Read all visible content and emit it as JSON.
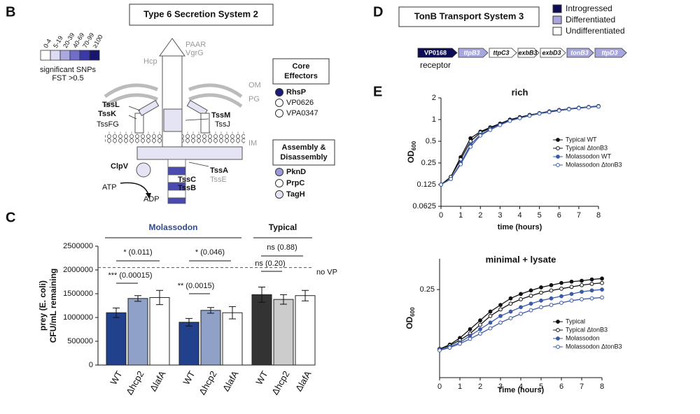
{
  "panel_labels": [
    "B",
    "C",
    "D",
    "E"
  ],
  "diagram_b": {
    "title": "Type 6 Secretion System 2",
    "legend_ticks": [
      "0-4",
      "5-19",
      "20-39",
      "40-69",
      "70-99",
      "≥100"
    ],
    "legend_caption": [
      "significant SNPs",
      "FST >0.5"
    ],
    "labels": {
      "PAAR": "PAAR",
      "VgrG": "VgrG",
      "Hcp": "Hcp",
      "OM": "OM",
      "PG": "PG",
      "IM": "IM",
      "TssL": "TssL",
      "TssK": "TssK",
      "TssFG": "TssFG",
      "TssM": "TssM",
      "TssJ": "TssJ",
      "ClpV": "ClpV",
      "TssA": "TssA",
      "TssE": "TssE",
      "TssC": "TssC",
      "TssB": "TssB",
      "ATP": "ATP",
      "ADP": "ADP"
    },
    "core_effectors": {
      "title": [
        "Core",
        "Effectors"
      ],
      "items": [
        "RhsP",
        "VP0626",
        "VPA0347"
      ]
    },
    "assembly": {
      "title": [
        "Assembly &",
        "Disassembly"
      ],
      "items": [
        "PknD",
        "PrpC",
        "TagH"
      ]
    }
  },
  "diagram_d": {
    "title": "TonB Transport System 3",
    "legend": [
      "Introgressed",
      "Differentiated",
      "Undifferentiated"
    ],
    "genes": [
      "VP0168",
      "ttpB3",
      "ttpC3",
      "exbB3",
      "exbD3",
      "tonB3",
      "ttpD3"
    ],
    "receptor": "receptor"
  },
  "chart_data": [
    {
      "type": "bar",
      "ylabel": [
        "prey (E. coli)",
        "CFU/mL remaining"
      ],
      "categories": [
        "WT",
        "Δhcp2",
        "ΔlafA",
        "WT",
        "Δhcp2",
        "ΔlafA",
        "WT",
        "Δhcp2",
        "ΔlafA"
      ],
      "values": [
        1100000,
        1400000,
        1420000,
        900000,
        1150000,
        1100000,
        1480000,
        1380000,
        1460000
      ],
      "errors": [
        100000,
        60000,
        150000,
        80000,
        60000,
        130000,
        160000,
        100000,
        110000
      ],
      "colors": [
        "#22418c",
        "#8fa1c7",
        "#ffffff",
        "#22418c",
        "#8fa1c7",
        "#ffffff",
        "#333333",
        "#cccccc",
        "#ffffff"
      ],
      "ylim": [
        0,
        2500000
      ],
      "yticks": [
        0,
        500000,
        1000000,
        1500000,
        2000000,
        2500000
      ],
      "groups": [
        "Molassodon",
        "Typical"
      ],
      "reference_line": {
        "value": 2050000,
        "label": "no VP"
      },
      "annotations": [
        "* (0.011)",
        "*** (0.00015)",
        "* (0.046)",
        "** (0.0015)",
        "ns (0.88)",
        "ns (0.20)"
      ]
    },
    {
      "type": "line",
      "title": "rich",
      "xlabel": "time (hours)",
      "ylabel": [
        "OD",
        "600"
      ],
      "ylog": true,
      "x": [
        0,
        0.5,
        1,
        1.5,
        2,
        2.5,
        3,
        3.5,
        4,
        4.5,
        5,
        5.5,
        6,
        6.5,
        7,
        7.5,
        8
      ],
      "xlim": [
        0,
        8
      ],
      "xticks": [
        0,
        1,
        2,
        3,
        4,
        5,
        6,
        7,
        8
      ],
      "ylim": [
        0.0625,
        2
      ],
      "yticks": [
        0.0625,
        0.125,
        0.25,
        0.5,
        1,
        2
      ],
      "legend": "right",
      "series": [
        {
          "name": "Typical WT",
          "color": "#111111",
          "marker": "filled",
          "values": [
            0.125,
            0.16,
            0.3,
            0.55,
            0.68,
            0.78,
            0.88,
            1.0,
            1.08,
            1.16,
            1.23,
            1.3,
            1.36,
            1.41,
            1.46,
            1.5,
            1.54
          ]
        },
        {
          "name": "Typical ΔtonB3",
          "color": "#111111",
          "marker": "open",
          "values": [
            0.125,
            0.16,
            0.28,
            0.5,
            0.66,
            0.76,
            0.86,
            0.98,
            1.06,
            1.14,
            1.22,
            1.28,
            1.34,
            1.4,
            1.45,
            1.49,
            1.53
          ]
        },
        {
          "name": "Molassodon WT",
          "color": "#3b5ba5",
          "marker": "filled",
          "values": [
            0.125,
            0.15,
            0.25,
            0.45,
            0.62,
            0.74,
            0.85,
            0.97,
            1.05,
            1.14,
            1.22,
            1.28,
            1.34,
            1.4,
            1.45,
            1.49,
            1.52
          ]
        },
        {
          "name": "Molassodon ΔtonB3",
          "color": "#3b5ba5",
          "marker": "open",
          "values": [
            0.125,
            0.15,
            0.24,
            0.42,
            0.6,
            0.72,
            0.84,
            0.96,
            1.05,
            1.13,
            1.21,
            1.27,
            1.33,
            1.39,
            1.44,
            1.48,
            1.52
          ]
        }
      ]
    },
    {
      "type": "line",
      "title": "minimal  + lysate",
      "xlabel": "Time (hours)",
      "ylabel": [
        "OD",
        "600"
      ],
      "ylog": false,
      "x": [
        0,
        0.5,
        1,
        1.5,
        2,
        2.5,
        3,
        3.5,
        4,
        4.5,
        5,
        5.5,
        6,
        6.5,
        7,
        7.5,
        8
      ],
      "xlim": [
        0,
        8
      ],
      "xticks": [
        0,
        1,
        2,
        3,
        4,
        5,
        6,
        7,
        8
      ],
      "ylim": [
        0.05,
        0.32
      ],
      "yticks": [
        0.25
      ],
      "legend": "lower right",
      "series": [
        {
          "name": "Typical",
          "color": "#111111",
          "marker": "filled",
          "values": [
            0.115,
            0.125,
            0.14,
            0.16,
            0.18,
            0.2,
            0.215,
            0.23,
            0.24,
            0.248,
            0.255,
            0.26,
            0.265,
            0.268,
            0.27,
            0.273,
            0.275
          ]
        },
        {
          "name": "Typical ΔtonB3",
          "color": "#111111",
          "marker": "open",
          "values": [
            0.115,
            0.123,
            0.135,
            0.15,
            0.17,
            0.19,
            0.205,
            0.218,
            0.228,
            0.236,
            0.243,
            0.248,
            0.252,
            0.256,
            0.26,
            0.263,
            0.265
          ]
        },
        {
          "name": "Molassodon",
          "color": "#3b5ba5",
          "marker": "filled",
          "values": [
            0.113,
            0.12,
            0.13,
            0.145,
            0.16,
            0.175,
            0.19,
            0.2,
            0.21,
            0.218,
            0.225,
            0.23,
            0.235,
            0.24,
            0.245,
            0.248,
            0.25
          ]
        },
        {
          "name": "Molassodon ΔtonB3",
          "color": "#3b5ba5",
          "marker": "open",
          "values": [
            0.112,
            0.118,
            0.127,
            0.138,
            0.15,
            0.162,
            0.175,
            0.185,
            0.195,
            0.203,
            0.21,
            0.215,
            0.22,
            0.225,
            0.228,
            0.23,
            0.232
          ]
        }
      ]
    }
  ]
}
